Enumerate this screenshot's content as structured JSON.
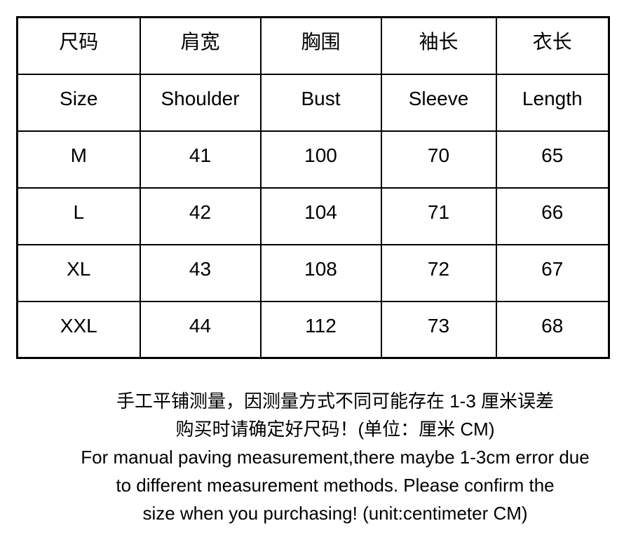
{
  "chart_data": {
    "type": "table",
    "title": "",
    "unit": "centimeter CM",
    "columns_zh": [
      "尺码",
      "肩宽",
      "胸围",
      "袖长",
      "衣长"
    ],
    "columns_en": [
      "Size",
      "Shoulder",
      "Bust",
      "Sleeve",
      "Length"
    ],
    "rows": [
      [
        "M",
        "41",
        "100",
        "70",
        "65"
      ],
      [
        "L",
        "42",
        "104",
        "71",
        "66"
      ],
      [
        "XL",
        "43",
        "108",
        "72",
        "67"
      ],
      [
        "XXL",
        "44",
        "112",
        "73",
        "68"
      ]
    ]
  },
  "notes": {
    "zh_line1": "手工平铺测量，因测量方式不同可能存在 1-3 厘米误差",
    "zh_line2": "购买时请确定好尺码！(单位：厘米 CM)",
    "en_line1": "For manual paving measurement,there maybe 1-3cm error due",
    "en_line2": "to different measurement methods. Please confirm the",
    "en_line3": "size when you purchasing! (unit:centimeter CM)"
  },
  "colors": {
    "border": "#000000",
    "text": "#000000",
    "background": "#ffffff"
  }
}
